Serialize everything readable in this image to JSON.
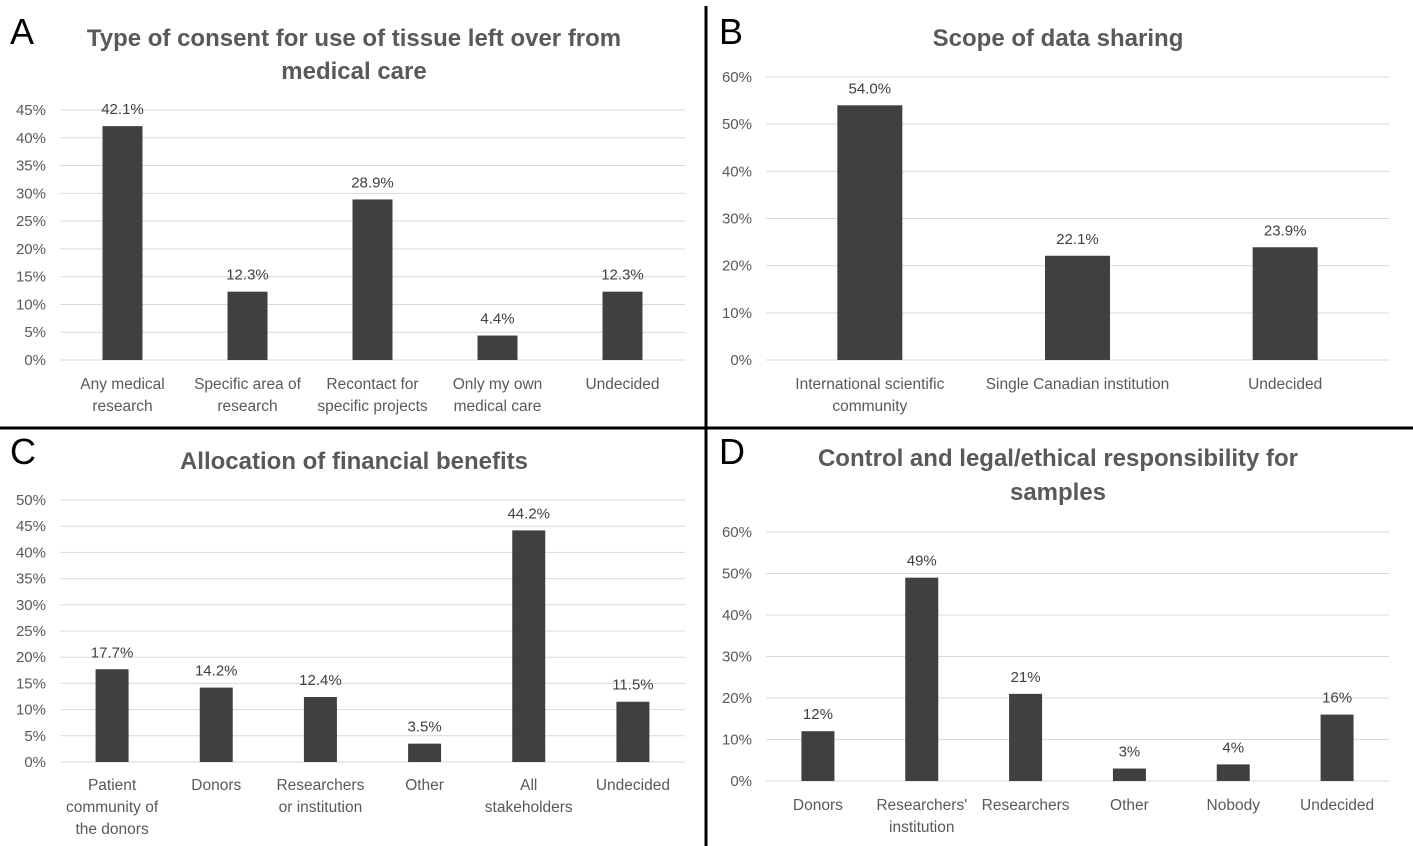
{
  "colors": {
    "bar": "#404040",
    "grid": "#d9d9d9",
    "text": "#595959",
    "divider": "#000000"
  },
  "chart_data": [
    {
      "panel": "A",
      "type": "bar",
      "title": "Type of consent for use of tissue left over from medical care",
      "categories": [
        "Any medical research",
        "Specific area of research",
        "Recontact for specific projects",
        "Only my own medical care",
        "Undecided"
      ],
      "values": [
        42.1,
        12.3,
        28.9,
        4.4,
        12.3
      ],
      "data_labels": [
        "42.1%",
        "12.3%",
        "28.9%",
        "4.4%",
        "12.3%"
      ],
      "ylim": [
        0,
        45
      ],
      "yticks": [
        0,
        5,
        10,
        15,
        20,
        25,
        30,
        35,
        40,
        45
      ],
      "ytick_labels": [
        "0%",
        "5%",
        "10%",
        "15%",
        "20%",
        "25%",
        "30%",
        "35%",
        "40%",
        "45%"
      ],
      "xlabel": "",
      "ylabel": "",
      "grid": true,
      "legend": "none"
    },
    {
      "panel": "B",
      "type": "bar",
      "title": "Scope of data sharing",
      "categories": [
        "International scientific community",
        "Single Canadian institution",
        "Undecided"
      ],
      "values": [
        54.0,
        22.1,
        23.9
      ],
      "data_labels": [
        "54.0%",
        "22.1%",
        "23.9%"
      ],
      "ylim": [
        0,
        60
      ],
      "yticks": [
        0,
        10,
        20,
        30,
        40,
        50,
        60
      ],
      "ytick_labels": [
        "0%",
        "10%",
        "20%",
        "30%",
        "40%",
        "50%",
        "60%"
      ],
      "xlabel": "",
      "ylabel": "",
      "grid": true,
      "legend": "none"
    },
    {
      "panel": "C",
      "type": "bar",
      "title": "Allocation of financial benefits",
      "categories": [
        "Patient community of the donors",
        "Donors",
        "Researchers or institution",
        "Other",
        "All stakeholders",
        "Undecided"
      ],
      "values": [
        17.7,
        14.2,
        12.4,
        3.5,
        44.2,
        11.5
      ],
      "data_labels": [
        "17.7%",
        "14.2%",
        "12.4%",
        "3.5%",
        "44.2%",
        "11.5%"
      ],
      "ylim": [
        0,
        50
      ],
      "yticks": [
        0,
        5,
        10,
        15,
        20,
        25,
        30,
        35,
        40,
        45,
        50
      ],
      "ytick_labels": [
        "0%",
        "5%",
        "10%",
        "15%",
        "20%",
        "25%",
        "30%",
        "35%",
        "40%",
        "45%",
        "50%"
      ],
      "xlabel": "",
      "ylabel": "",
      "grid": true,
      "legend": "none"
    },
    {
      "panel": "D",
      "type": "bar",
      "title": "Control and legal/ethical responsibility for samples",
      "categories": [
        "Donors",
        "Researchers' institution",
        "Researchers",
        "Other",
        "Nobody",
        "Undecided"
      ],
      "values": [
        12,
        49,
        21,
        3,
        4,
        16
      ],
      "data_labels": [
        "12%",
        "49%",
        "21%",
        "3%",
        "4%",
        "16%"
      ],
      "ylim": [
        0,
        60
      ],
      "yticks": [
        0,
        10,
        20,
        30,
        40,
        50,
        60
      ],
      "ytick_labels": [
        "0%",
        "10%",
        "20%",
        "30%",
        "40%",
        "50%",
        "60%"
      ],
      "xlabel": "",
      "ylabel": "",
      "grid": true,
      "legend": "none"
    }
  ]
}
